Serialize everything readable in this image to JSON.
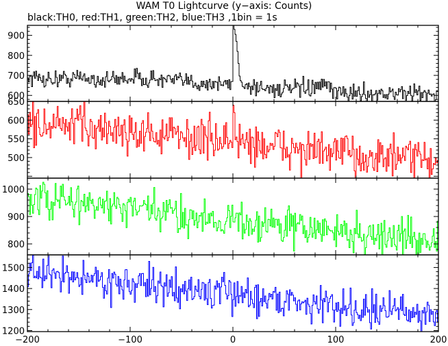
{
  "title": "WAM T0 Lightcurve (y−axis: Counts)",
  "subtitle": "black:TH0, red:TH1, green:TH2, blue:TH3 ,1bin = 1s",
  "chart_data": [
    {
      "type": "line",
      "series": [
        {
          "name": "TH0",
          "color": "#000000",
          "x": [
            -200,
            -175,
            -150,
            -125,
            -100,
            -75,
            -50,
            -25,
            -5,
            0,
            2,
            5,
            10,
            25,
            50,
            75,
            88,
            100,
            125,
            150,
            175,
            200
          ],
          "values": [
            690,
            680,
            690,
            675,
            690,
            680,
            670,
            660,
            655,
            665,
            950,
            720,
            650,
            640,
            630,
            635,
            645,
            615,
            610,
            610,
            610,
            605
          ],
          "noise": 22,
          "spikes": [
            [
              0,
              960
            ],
            [
              1,
              930
            ],
            [
              2,
              905
            ],
            [
              3,
              870
            ],
            [
              4,
              820
            ],
            [
              5,
              760
            ],
            [
              88,
              680
            ]
          ]
        }
      ],
      "xlim": [
        -200,
        200
      ],
      "ylim": [
        570,
        950
      ],
      "yticks": [
        600,
        700,
        800,
        900
      ]
    },
    {
      "type": "line",
      "series": [
        {
          "name": "TH1",
          "color": "#ff0000",
          "x": [
            -200,
            -150,
            -100,
            -50,
            0,
            50,
            100,
            150,
            200
          ],
          "values": [
            590,
            580,
            570,
            555,
            545,
            525,
            510,
            500,
            490
          ],
          "noise": 28,
          "spikes": [
            [
              0,
              640
            ],
            [
              1,
              620
            ],
            [
              -145,
              650
            ]
          ]
        }
      ],
      "xlim": [
        -200,
        200
      ],
      "ylim": [
        445,
        650
      ],
      "yticks": [
        500,
        550,
        600,
        650
      ]
    },
    {
      "type": "line",
      "series": [
        {
          "name": "TH2",
          "color": "#00ff00",
          "x": [
            -200,
            -150,
            -100,
            -50,
            0,
            50,
            100,
            150,
            200
          ],
          "values": [
            960,
            950,
            925,
            905,
            885,
            865,
            845,
            825,
            815
          ],
          "noise": 35,
          "spikes": []
        }
      ],
      "xlim": [
        -200,
        200
      ],
      "ylim": [
        760,
        1040
      ],
      "yticks": [
        800,
        900,
        1000
      ]
    },
    {
      "type": "line",
      "series": [
        {
          "name": "TH3",
          "color": "#0000ff",
          "x": [
            -200,
            -150,
            -100,
            -50,
            0,
            50,
            100,
            150,
            200
          ],
          "values": [
            1470,
            1455,
            1420,
            1395,
            1375,
            1345,
            1315,
            1295,
            1275
          ],
          "noise": 42,
          "spikes": []
        }
      ],
      "xlim": [
        -200,
        200
      ],
      "ylim": [
        1195,
        1560
      ],
      "yticks": [
        1200,
        1300,
        1400,
        1500
      ]
    }
  ],
  "xticks": [
    -200,
    -100,
    0,
    100,
    200
  ],
  "xtick_labels": [
    "−200",
    "−100",
    "0",
    "100",
    "200"
  ]
}
